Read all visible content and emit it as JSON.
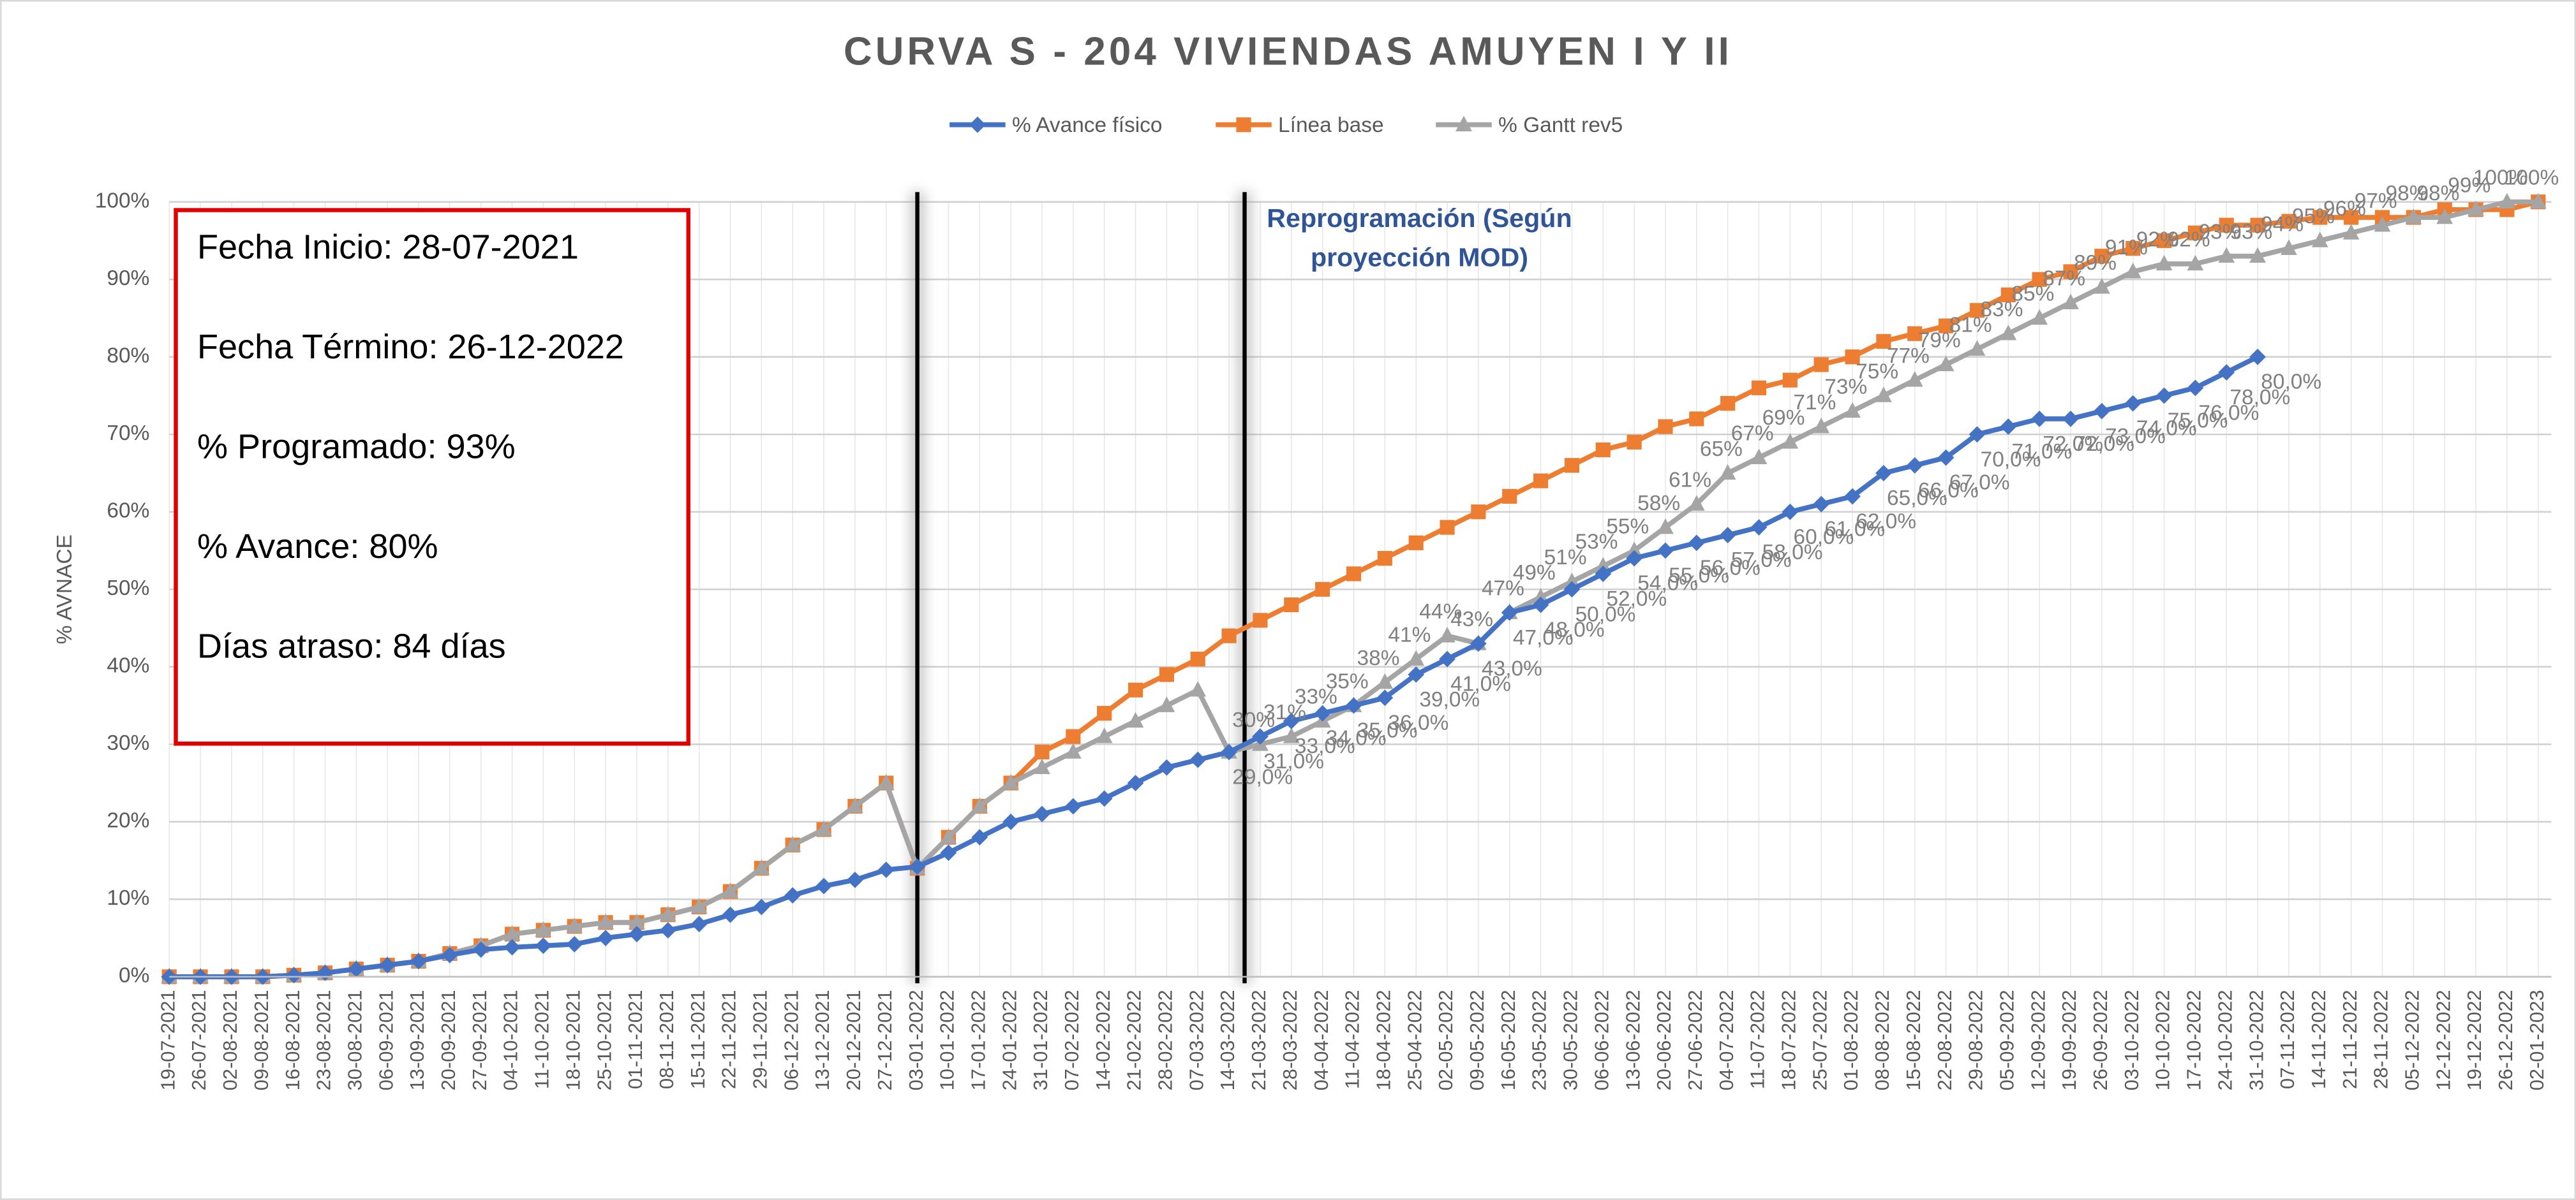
{
  "chart_data": {
    "type": "line",
    "title": "CURVA S - 204 VIVIENDAS AMUYEN I Y II",
    "y_label": "% AVNACE",
    "categories": [
      "19-07-2021",
      "26-07-2021",
      "02-08-2021",
      "09-08-2021",
      "16-08-2021",
      "23-08-2021",
      "30-08-2021",
      "06-09-2021",
      "13-09-2021",
      "20-09-2021",
      "27-09-2021",
      "04-10-2021",
      "11-10-2021",
      "18-10-2021",
      "25-10-2021",
      "01-11-2021",
      "08-11-2021",
      "15-11-2021",
      "22-11-2021",
      "29-11-2021",
      "06-12-2021",
      "13-12-2021",
      "20-12-2021",
      "27-12-2021",
      "03-01-2022",
      "10-01-2022",
      "17-01-2022",
      "24-01-2022",
      "31-01-2022",
      "07-02-2022",
      "14-02-2022",
      "21-02-2022",
      "28-02-2022",
      "07-03-2022",
      "14-03-2022",
      "21-03-2022",
      "28-03-2022",
      "04-04-2022",
      "11-04-2022",
      "18-04-2022",
      "25-04-2022",
      "02-05-2022",
      "09-05-2022",
      "16-05-2022",
      "23-05-2022",
      "30-05-2022",
      "06-06-2022",
      "13-06-2022",
      "20-06-2022",
      "27-06-2022",
      "04-07-2022",
      "11-07-2022",
      "18-07-2022",
      "25-07-2022",
      "01-08-2022",
      "08-08-2022",
      "15-08-2022",
      "22-08-2022",
      "29-08-2022",
      "05-09-2022",
      "12-09-2022",
      "19-09-2022",
      "26-09-2022",
      "03-10-2022",
      "10-10-2022",
      "17-10-2022",
      "24-10-2022",
      "31-10-2022",
      "07-11-2022",
      "14-11-2022",
      "21-11-2022",
      "28-11-2022",
      "05-12-2022",
      "12-12-2022",
      "19-12-2022",
      "26-12-2022",
      "02-01-2023"
    ],
    "series": [
      {
        "name": "% Avance físico",
        "color": "#4472c4",
        "marker": "diamond",
        "values": [
          0,
          0,
          0,
          0,
          0.2,
          0.5,
          1,
          1.5,
          2,
          2.8,
          3.5,
          3.8,
          4,
          4.2,
          5,
          5.5,
          6,
          6.8,
          8,
          9,
          10.5,
          11.7,
          12.5,
          13.8,
          14.2,
          16,
          18,
          20,
          21,
          22,
          23,
          25,
          27,
          28,
          29,
          31,
          33,
          34,
          35,
          36,
          39,
          41,
          43,
          47,
          48,
          50,
          52,
          54,
          55,
          56,
          57,
          58,
          60,
          61,
          62,
          65,
          66,
          67,
          70,
          71,
          72,
          72,
          73,
          74,
          75,
          76,
          78,
          80,
          null,
          null,
          null,
          null,
          null,
          null,
          null,
          null,
          null
        ],
        "value_labels": [
          null,
          null,
          null,
          null,
          null,
          null,
          null,
          null,
          null,
          null,
          null,
          null,
          null,
          null,
          null,
          null,
          null,
          null,
          null,
          null,
          null,
          null,
          null,
          null,
          null,
          null,
          null,
          null,
          null,
          null,
          null,
          null,
          null,
          null,
          "29,0%",
          "31,0%",
          "33,0%",
          "34,0%",
          "35,0%",
          "36,0%",
          "39,0%",
          "41,0%",
          "43,0%",
          "47,0%",
          "48,0%",
          "50,0%",
          "52,0%",
          "54,0%",
          "55,0%",
          "56,0%",
          "57,0%",
          "58,0%",
          "60,0%",
          "61,0%",
          "62,0%",
          "65,0%",
          "66,0%",
          "67,0%",
          "70,0%",
          "71,0%",
          "72,0%",
          "72,0%",
          "73,0%",
          "74,0%",
          "75,0%",
          "76,0%",
          "78,0%",
          "80,0%",
          null,
          null,
          null,
          null,
          null,
          null,
          null,
          null,
          null
        ]
      },
      {
        "name": "Línea base",
        "color": "#ed7d31",
        "marker": "square",
        "values": [
          0,
          0,
          0,
          0,
          0.2,
          0.5,
          1,
          1.5,
          2,
          3,
          4,
          5.5,
          6,
          6.5,
          7,
          7,
          8,
          9,
          11,
          14,
          17,
          19,
          22,
          25,
          14,
          18,
          22,
          25,
          29,
          31,
          34,
          37,
          39,
          41,
          44,
          46,
          48,
          50,
          52,
          54,
          56,
          58,
          60,
          62,
          64,
          66,
          68,
          69,
          71,
          72,
          74,
          76,
          77,
          79,
          80,
          82,
          83,
          84,
          86,
          88,
          90,
          91,
          93,
          94,
          95,
          96,
          97,
          97,
          97.5,
          98,
          98,
          98,
          98,
          99,
          99,
          99,
          100
        ]
      },
      {
        "name": "% Gantt rev5",
        "color": "#a5a5a5",
        "marker": "triangle",
        "values": [
          0,
          0,
          0,
          0,
          0.2,
          0.5,
          1,
          1.5,
          2,
          3,
          4,
          5.5,
          6,
          6.5,
          7,
          7,
          8,
          9,
          11,
          14,
          17,
          19,
          22,
          25,
          14,
          18,
          22,
          25,
          27,
          29,
          31,
          33,
          35,
          37,
          29,
          30,
          31,
          33,
          35,
          38,
          41,
          44,
          43,
          47,
          49,
          51,
          53,
          55,
          58,
          61,
          65,
          67,
          69,
          71,
          73,
          75,
          77,
          79,
          81,
          83,
          85,
          87,
          89,
          91,
          92,
          92,
          93,
          93,
          94,
          95,
          96,
          97,
          98,
          98,
          99,
          100,
          100
        ],
        "value_labels": [
          null,
          null,
          null,
          null,
          null,
          null,
          null,
          null,
          null,
          null,
          null,
          null,
          null,
          null,
          null,
          null,
          null,
          null,
          null,
          null,
          null,
          null,
          null,
          null,
          null,
          null,
          null,
          null,
          null,
          null,
          null,
          null,
          null,
          null,
          null,
          "30%",
          "31%",
          "33%",
          "35%",
          "38%",
          "41%",
          "44%",
          "43%",
          "47%",
          "49%",
          "51%",
          "53%",
          "55%",
          "58%",
          "61%",
          "65%",
          "67%",
          "69%",
          "71%",
          "73%",
          "75%",
          "77%",
          "79%",
          "81%",
          "83%",
          "85%",
          "87%",
          "89%",
          "91%",
          "92%",
          "92%",
          "93%",
          "93%",
          "94%",
          "95%",
          "96%",
          "97%",
          "98%",
          "98%",
          "99%",
          "100%",
          "100%"
        ]
      }
    ],
    "ylim": [
      0,
      100
    ],
    "yticks": [
      {
        "value": 0,
        "label": "0%"
      },
      {
        "value": 10,
        "label": "10%"
      },
      {
        "value": 20,
        "label": "20%"
      },
      {
        "value": 30,
        "label": "30%"
      },
      {
        "value": 40,
        "label": "40%"
      },
      {
        "value": 50,
        "label": "50%"
      },
      {
        "value": 60,
        "label": "60%"
      },
      {
        "value": 70,
        "label": "70%"
      },
      {
        "value": 80,
        "label": "80%"
      },
      {
        "value": 90,
        "label": "90%"
      },
      {
        "value": 100,
        "label": "100%"
      }
    ],
    "grid": true,
    "legend": "top",
    "annotation": [
      "Reprogramación (Según",
      "proyección MOD)"
    ],
    "info_box": [
      "Fecha Inicio: 28-07-2021",
      "Fecha Término: 26-12-2022",
      "% Programado: 93%",
      "% Avance: 80%",
      "Días atraso: 84 días"
    ]
  }
}
